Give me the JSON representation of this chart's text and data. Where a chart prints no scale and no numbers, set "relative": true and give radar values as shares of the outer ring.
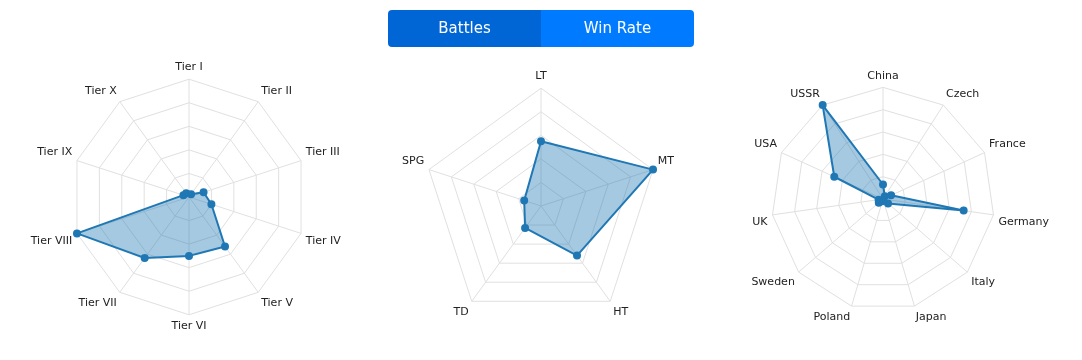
{
  "chart_data": [
    {
      "type": "other",
      "annotations": [
        "Battles",
        "Win Rate"
      ]
    },
    {
      "type": "radar",
      "relative": true,
      "grid": true,
      "marker": "circle",
      "categories": [
        "Tier I",
        "Tier II",
        "Tier III",
        "Tier IV",
        "Tier V",
        "Tier VI",
        "Tier VII",
        "Tier VIII",
        "Tier IX",
        "Tier X"
      ],
      "series": [
        {
          "color": "#1f77b4",
          "values": [
            null,
            0.03,
            0.13,
            0.2,
            0.52,
            0.5,
            0.64,
            1,
            0.05,
            0.04
          ]
        }
      ]
    },
    {
      "type": "radar",
      "relative": true,
      "grid": true,
      "marker": "circle",
      "categories": [
        "LT",
        "MT",
        "HT",
        "TD",
        "SPG"
      ],
      "series": [
        {
          "color": "#1f77b4",
          "values": [
            0.55,
            1,
            0.52,
            0.23,
            0.15
          ]
        }
      ]
    },
    {
      "type": "radar",
      "relative": true,
      "grid": true,
      "marker": "circle",
      "categories": [
        "China",
        "Czech",
        "France",
        "Germany",
        "Italy",
        "Japan",
        "Poland",
        "Sweden",
        "UK",
        "USA",
        "USSR"
      ],
      "series": [
        {
          "color": "#1f77b4",
          "values": [
            0.13,
            0.03,
            0.08,
            0.73,
            0.06,
            null,
            0.02,
            0.05,
            0.04,
            0.48,
            1
          ]
        }
      ]
    }
  ]
}
